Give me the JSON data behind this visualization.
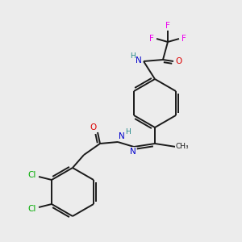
{
  "background_color": "#ececec",
  "bond_color": "#1a1a1a",
  "atom_colors": {
    "F": "#ee00ee",
    "O": "#dd0000",
    "N": "#0000cc",
    "H": "#228888",
    "Cl": "#00aa00",
    "C": "#1a1a1a"
  },
  "figsize": [
    3.0,
    3.0
  ],
  "dpi": 100
}
